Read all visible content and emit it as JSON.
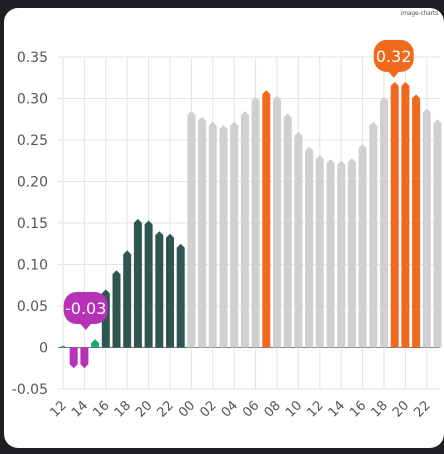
{
  "credit": "image-charts",
  "colors": {
    "negative": "#b832b8",
    "positive_low": "#1aa86b",
    "dark": "#2f5650",
    "gray": "#d0d0d0",
    "orange": "#f06a1d",
    "grid": "#e3e3e3",
    "axis": "#777777"
  },
  "chart_data": {
    "type": "bar",
    "ylim": [
      -0.05,
      0.35
    ],
    "y_ticks": [
      "0.35",
      "0.30",
      "0.25",
      "0.20",
      "0.15",
      "0.10",
      "0.05",
      "0",
      "-0.05"
    ],
    "y_tick_values": [
      0.35,
      0.3,
      0.25,
      0.2,
      0.15,
      0.1,
      0.05,
      0,
      -0.05
    ],
    "x_tick_labels": [
      "12",
      "14",
      "16",
      "18",
      "20",
      "22",
      "00",
      "02",
      "04",
      "06",
      "08",
      "10",
      "12",
      "14",
      "16",
      "18",
      "20",
      "22"
    ],
    "categories": [
      "12",
      "13",
      "14",
      "15",
      "16",
      "17",
      "18",
      "19",
      "20",
      "21",
      "22",
      "23",
      "00",
      "01",
      "02",
      "03",
      "04",
      "05",
      "06",
      "07",
      "08",
      "09",
      "10",
      "11",
      "12",
      "13",
      "14",
      "15",
      "16",
      "17",
      "18",
      "19",
      "20",
      "21",
      "22",
      "23"
    ],
    "values": [
      0.0,
      -0.025,
      -0.025,
      0.01,
      0.07,
      0.093,
      0.117,
      0.155,
      0.153,
      0.14,
      0.137,
      0.125,
      0.285,
      0.278,
      0.272,
      0.268,
      0.272,
      0.285,
      0.302,
      0.31,
      0.303,
      0.282,
      0.26,
      0.242,
      0.232,
      0.227,
      0.225,
      0.228,
      0.245,
      0.272,
      0.302,
      0.32,
      0.32,
      0.305,
      0.288,
      0.275
    ],
    "color_groups": [
      "positive_low",
      "negative",
      "negative",
      "positive_low",
      "dark",
      "dark",
      "dark",
      "dark",
      "dark",
      "dark",
      "dark",
      "dark",
      "gray",
      "gray",
      "gray",
      "gray",
      "gray",
      "gray",
      "gray",
      "orange",
      "gray",
      "gray",
      "gray",
      "gray",
      "gray",
      "gray",
      "gray",
      "gray",
      "gray",
      "gray",
      "gray",
      "orange",
      "orange",
      "orange",
      "gray",
      "gray"
    ],
    "annotations": [
      {
        "text": "-0.03",
        "value": -0.025,
        "bar_index": 1,
        "color": "negative"
      },
      {
        "text": "0.32",
        "value": 0.32,
        "bar_index": 31,
        "color": "orange"
      }
    ]
  }
}
